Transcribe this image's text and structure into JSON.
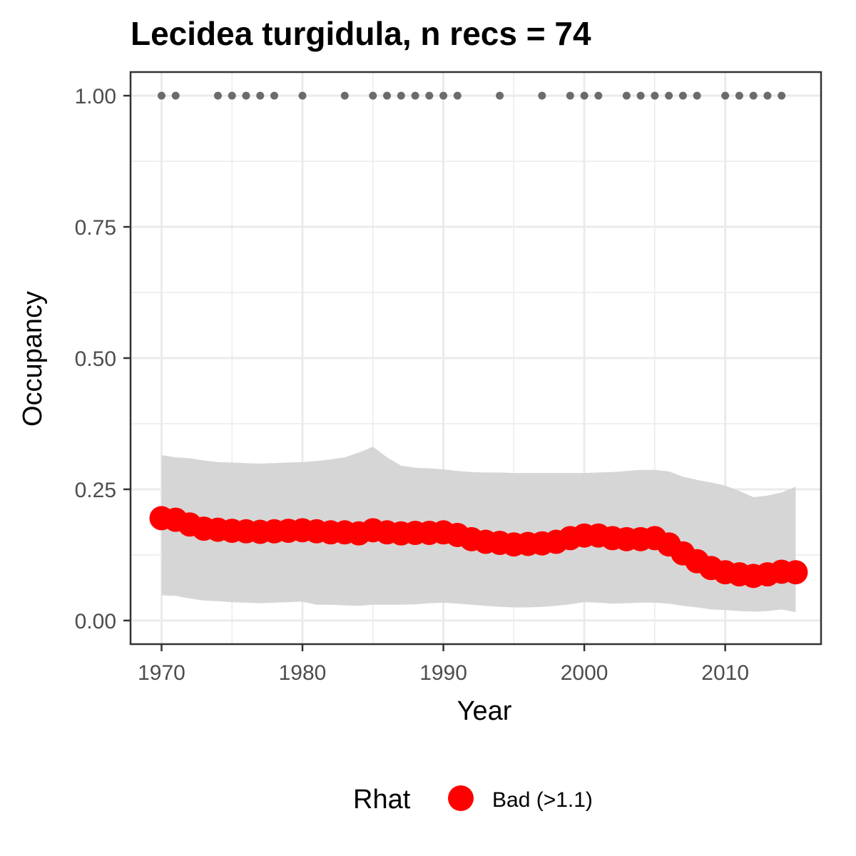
{
  "chart_data": {
    "type": "line",
    "title": "Lecidea turgidula, n recs = 74",
    "xlabel": "Year",
    "ylabel": "Occupancy",
    "xlim": [
      1967.8,
      2016.8
    ],
    "ylim": [
      -0.045,
      1.045
    ],
    "x_ticks": [
      1970,
      1980,
      1990,
      2000,
      2010
    ],
    "x_tick_labels": [
      "1970",
      "1980",
      "1990",
      "2000",
      "2010"
    ],
    "y_ticks": [
      0,
      0.25,
      0.5,
      0.75,
      1
    ],
    "y_tick_labels": [
      "0.00",
      "0.25",
      "0.50",
      "0.75",
      "1.00"
    ],
    "grid": true,
    "legend": {
      "position": "bottom",
      "title": "Rhat",
      "entries": [
        {
          "label": "Bad (>1.1)",
          "color": "#ff0000"
        }
      ]
    },
    "colors": {
      "points": "#ff0000",
      "ribbon": "#d3d3d3",
      "records": "#6b6b6b",
      "panel_border": "#333333",
      "grid": "#ebebeb"
    },
    "series": [
      {
        "name": "Bad (>1.1)",
        "x": [
          1970,
          1971,
          1972,
          1973,
          1974,
          1975,
          1976,
          1977,
          1978,
          1979,
          1980,
          1981,
          1982,
          1983,
          1984,
          1985,
          1986,
          1987,
          1988,
          1989,
          1990,
          1991,
          1992,
          1993,
          1994,
          1995,
          1996,
          1997,
          1998,
          1999,
          2000,
          2001,
          2002,
          2003,
          2004,
          2005,
          2006,
          2007,
          2008,
          2009,
          2010,
          2011,
          2012,
          2013,
          2014,
          2015
        ],
        "values": [
          0.195,
          0.192,
          0.183,
          0.175,
          0.173,
          0.171,
          0.17,
          0.169,
          0.17,
          0.171,
          0.172,
          0.17,
          0.168,
          0.168,
          0.166,
          0.172,
          0.168,
          0.166,
          0.167,
          0.167,
          0.168,
          0.163,
          0.155,
          0.15,
          0.148,
          0.145,
          0.146,
          0.147,
          0.15,
          0.157,
          0.162,
          0.162,
          0.157,
          0.155,
          0.155,
          0.157,
          0.145,
          0.128,
          0.113,
          0.1,
          0.092,
          0.088,
          0.085,
          0.088,
          0.093,
          0.092
        ],
        "lower": [
          0.048,
          0.047,
          0.042,
          0.038,
          0.037,
          0.035,
          0.034,
          0.033,
          0.034,
          0.035,
          0.036,
          0.03,
          0.03,
          0.029,
          0.028,
          0.03,
          0.03,
          0.03,
          0.031,
          0.033,
          0.034,
          0.032,
          0.03,
          0.028,
          0.026,
          0.025,
          0.025,
          0.026,
          0.028,
          0.031,
          0.035,
          0.034,
          0.032,
          0.033,
          0.034,
          0.034,
          0.032,
          0.028,
          0.025,
          0.021,
          0.02,
          0.018,
          0.017,
          0.018,
          0.021,
          0.016
        ],
        "upper": [
          0.315,
          0.311,
          0.309,
          0.305,
          0.302,
          0.301,
          0.3,
          0.299,
          0.3,
          0.301,
          0.302,
          0.304,
          0.307,
          0.311,
          0.32,
          0.331,
          0.311,
          0.295,
          0.291,
          0.29,
          0.288,
          0.285,
          0.283,
          0.282,
          0.282,
          0.281,
          0.281,
          0.281,
          0.281,
          0.281,
          0.281,
          0.282,
          0.283,
          0.285,
          0.287,
          0.287,
          0.284,
          0.274,
          0.268,
          0.263,
          0.257,
          0.247,
          0.235,
          0.238,
          0.244,
          0.255
        ]
      }
    ],
    "record_years": [
      1970,
      1971,
      1974,
      1975,
      1976,
      1977,
      1978,
      1980,
      1983,
      1985,
      1986,
      1987,
      1988,
      1989,
      1990,
      1991,
      1994,
      1997,
      1999,
      2000,
      2001,
      2003,
      2004,
      2005,
      2006,
      2007,
      2008,
      2010,
      2011,
      2012,
      2013,
      2014
    ],
    "record_value": 1
  }
}
